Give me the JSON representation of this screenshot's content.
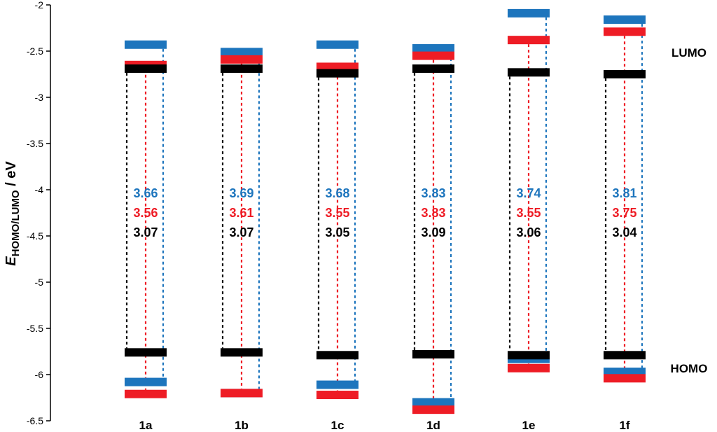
{
  "chart_data": {
    "type": "energy-level-diagram",
    "ylabel": {
      "main": "E",
      "sub": "HOMO/LUMO",
      "unit": " / eV"
    },
    "ylim": [
      -6.5,
      -2
    ],
    "yticks": [
      "-2",
      "-2.5",
      "-3",
      "-3.5",
      "-4",
      "-4.5",
      "-5",
      "-5.5",
      "-6",
      "-6.5"
    ],
    "ytick_values": [
      -2,
      -2.5,
      -3,
      -3.5,
      -4,
      -4.5,
      -5,
      -5.5,
      -6,
      -6.5
    ],
    "categories": [
      "1a",
      "1b",
      "1c",
      "1d",
      "1e",
      "1f"
    ],
    "colors": {
      "black": "#000000",
      "red": "#ee1c25",
      "blue": "#1d75bd"
    },
    "series": [
      {
        "color": "black",
        "lumo": [
          -2.69,
          -2.69,
          -2.74,
          -2.69,
          -2.73,
          -2.75
        ],
        "homo": [
          -5.76,
          -5.76,
          -5.79,
          -5.78,
          -5.79,
          -5.79
        ],
        "gap_labels": [
          "3.07",
          "3.07",
          "3.05",
          "3.09",
          "3.06",
          "3.04"
        ]
      },
      {
        "color": "red",
        "lumo": [
          -2.65,
          -2.59,
          -2.67,
          -2.55,
          -2.38,
          -2.29
        ],
        "homo": [
          -6.21,
          -6.2,
          -6.22,
          -6.38,
          -5.93,
          -6.04
        ],
        "gap_labels": [
          "3.56",
          "3.61",
          "3.55",
          "3.83",
          "3.55",
          "3.75"
        ]
      },
      {
        "color": "blue",
        "lumo": [
          -2.43,
          -2.51,
          -2.43,
          -2.47,
          -2.09,
          -2.16
        ],
        "homo": [
          -6.08,
          -6.2,
          -6.11,
          -6.3,
          -5.83,
          -5.97
        ],
        "gap_labels": [
          "3.66",
          "3.69",
          "3.68",
          "3.83",
          "3.74",
          "3.81"
        ]
      }
    ],
    "annotations": {
      "lumo": "LUMO",
      "homo": "HOMO"
    }
  }
}
